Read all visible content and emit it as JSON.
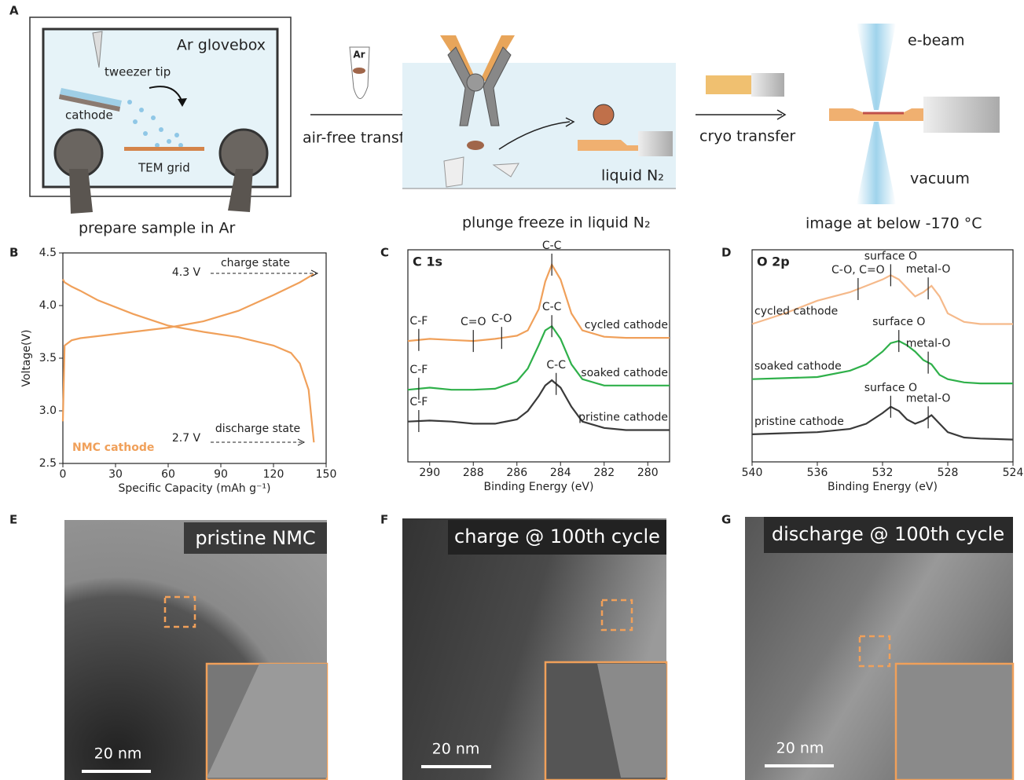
{
  "panel_labels": [
    "A",
    "B",
    "C",
    "D",
    "E",
    "F",
    "G"
  ],
  "schematic": {
    "glovebox": "Ar glovebox",
    "tweezer": "tweezer tip",
    "cathode": "cathode",
    "grid": "TEM grid",
    "prepare": "prepare sample in Ar",
    "vial": "Ar",
    "transfer1": "air-free transfer",
    "ln2": "liquid N₂",
    "plunge": "plunge freeze in liquid N₂",
    "transfer2": "cryo transfer",
    "ebeam": "e-beam",
    "vacuum": "vacuum",
    "image": "image at below -170 °C"
  },
  "chart_data": [
    {
      "type": "line",
      "xlabel": "Specific Capacity (mAh g⁻¹)",
      "ylabel": "Voltage(V)",
      "x": [
        0,
        1,
        5,
        10,
        20,
        40,
        60,
        80,
        100,
        120,
        130,
        135,
        140,
        143
      ],
      "series": [
        {
          "color": "#f0a05a",
          "values": [
            2.9,
            3.62,
            3.67,
            3.69,
            3.71,
            3.75,
            3.79,
            3.85,
            3.95,
            4.1,
            4.18,
            4.22,
            4.27,
            4.3
          ]
        },
        {
          "color": "#f0a05a",
          "values": [
            4.25,
            4.22,
            4.18,
            4.14,
            4.05,
            3.92,
            3.81,
            3.75,
            3.7,
            3.62,
            3.55,
            3.45,
            3.2,
            2.7
          ]
        }
      ],
      "annotations": [
        "4.3 V",
        "charge state",
        "2.7 V",
        "discharge state",
        "NMC cathode"
      ],
      "xlim": [
        0,
        150
      ],
      "xticks": [
        0,
        30,
        60,
        90,
        120,
        150
      ],
      "ylim": [
        2.5,
        4.5
      ],
      "yticks": [
        2.5,
        {
          "value": 3,
          "label": "3.0"
        },
        3.5,
        {
          "value": 4,
          "label": "4.0"
        },
        4.5
      ]
    },
    {
      "type": "line",
      "title": "C 1s",
      "xlabel": "Binding Energy (eV)",
      "x": [
        291,
        290,
        289,
        288,
        287,
        286,
        285.5,
        285,
        284.7,
        284.4,
        284,
        283.5,
        283,
        282,
        281,
        280,
        279
      ],
      "series": [
        {
          "name": "cycled cathode",
          "color": "#f0a05a",
          "values": [
            57,
            58,
            57.5,
            57,
            58,
            59.5,
            62,
            72,
            85,
            93,
            86,
            70,
            62,
            59,
            58.5,
            58.5,
            58.5
          ],
          "peaks": [
            {
              "label": "C-F",
              "x": 290.5
            },
            {
              "label": "C=O",
              "x": 288
            },
            {
              "label": "C-O",
              "x": 286.7
            },
            {
              "label": "C-C",
              "x": 284.4
            }
          ]
        },
        {
          "name": "soaked cathode",
          "color": "#2fb04a",
          "values": [
            34,
            35,
            34,
            34,
            34.5,
            38,
            44,
            55,
            62,
            64,
            58,
            46,
            39,
            36,
            36,
            36,
            36
          ],
          "peaks": [
            {
              "label": "C-F",
              "x": 290.5
            },
            {
              "label": "C-C",
              "x": 284.4
            }
          ]
        },
        {
          "name": "pristine cathode",
          "color": "#3a3a3a",
          "values": [
            19,
            19.5,
            19,
            18,
            18,
            20,
            24,
            31,
            36,
            38.5,
            35,
            26,
            19,
            16,
            15,
            15,
            15
          ],
          "peaks": [
            {
              "label": "C-F",
              "x": 290.5
            },
            {
              "label": "C-C",
              "x": 284.2
            }
          ]
        }
      ],
      "xlim": [
        291,
        279
      ],
      "xticks": [
        290,
        288,
        286,
        284,
        282,
        280
      ],
      "ylim": [
        0,
        100
      ]
    },
    {
      "type": "line",
      "title": "O 2p",
      "xlabel": "Binding Energy (eV)",
      "x": [
        540,
        538,
        536,
        534,
        533,
        532,
        531.5,
        531,
        530.5,
        530,
        529.5,
        529,
        528.5,
        528,
        527,
        526,
        524
      ],
      "series": [
        {
          "name": "cycled cathode",
          "color": "#f5b98a",
          "values": [
            65,
            70,
            76,
            80,
            83,
            86,
            88,
            86,
            82,
            78,
            80,
            83,
            78,
            70,
            66,
            65,
            65
          ],
          "peaks": [
            {
              "label": "C-O, C=O",
              "x": 533.5
            },
            {
              "label": "surface O",
              "x": 531.5
            },
            {
              "label": "metal-O",
              "x": 529.2
            }
          ]
        },
        {
          "name": "soaked cathode",
          "color": "#2fb04a",
          "values": [
            39,
            39.5,
            40,
            43,
            46,
            52,
            56,
            57,
            55,
            52,
            48,
            46,
            41,
            39,
            37.5,
            37,
            37
          ],
          "peaks": [
            {
              "label": "surface O",
              "x": 531
            },
            {
              "label": "metal-O",
              "x": 529.2
            }
          ]
        },
        {
          "name": "pristine cathode",
          "color": "#3a3a3a",
          "values": [
            13,
            13.5,
            14,
            15.5,
            18,
            23,
            26,
            24,
            20,
            18,
            19.5,
            22,
            18,
            14,
            11.5,
            11,
            10.5
          ],
          "peaks": [
            {
              "label": "surface O",
              "x": 531.5
            },
            {
              "label": "metal-O",
              "x": 529.2
            }
          ]
        }
      ],
      "xlim": [
        540,
        524
      ],
      "xticks": [
        540,
        536,
        532,
        528,
        524
      ],
      "ylim": [
        0,
        100
      ]
    }
  ],
  "micrographs": [
    {
      "label": "pristine NMC",
      "scale": "20 nm"
    },
    {
      "label": "charge @ 100th cycle",
      "scale": "20 nm"
    },
    {
      "label": "discharge @ 100th cycle",
      "scale": "20 nm"
    }
  ]
}
